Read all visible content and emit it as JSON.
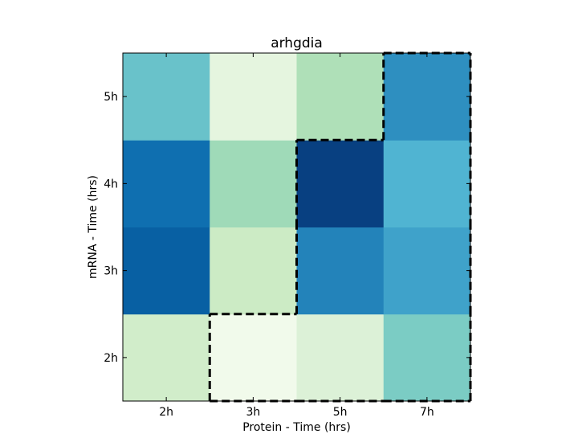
{
  "chart_data": {
    "type": "heatmap",
    "title": "arhgdia",
    "xlabel": "Protein  - Time (hrs)",
    "ylabel": "mRNA  - Time (hrs)",
    "x_categories": [
      "2h",
      "3h",
      "5h",
      "7h"
    ],
    "y_categories": [
      "2h",
      "3h",
      "4h",
      "5h"
    ],
    "colormap": "GnBu",
    "value_range": [
      0,
      1
    ],
    "values": [
      [
        0.22,
        0.03,
        0.15,
        0.5
      ],
      [
        0.9,
        0.25,
        0.78,
        0.68
      ],
      [
        0.85,
        0.4,
        1.0,
        0.62
      ],
      [
        0.55,
        0.1,
        0.35,
        0.74
      ]
    ],
    "highlight_region": {
      "style": "dashed",
      "cells": [
        [
          0,
          1
        ],
        [
          0,
          2
        ],
        [
          0,
          3
        ],
        [
          1,
          2
        ],
        [
          1,
          3
        ],
        [
          2,
          2
        ],
        [
          2,
          3
        ],
        [
          3,
          3
        ]
      ]
    },
    "grid": false,
    "legend": "none"
  }
}
